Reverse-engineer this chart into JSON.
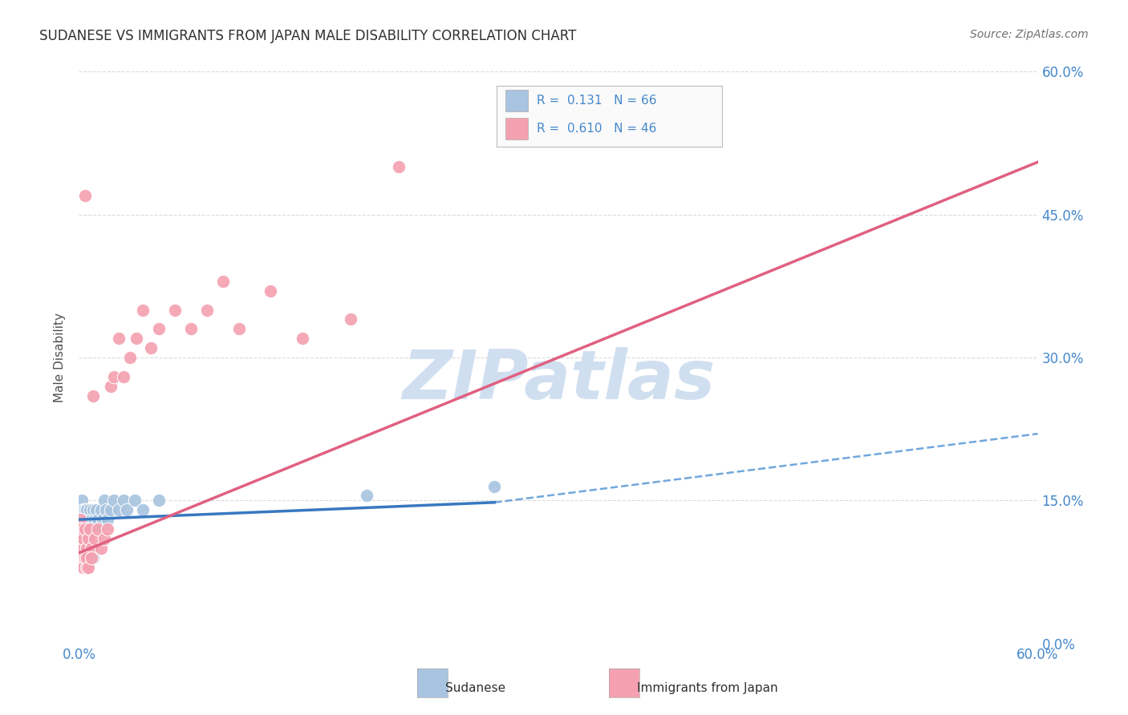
{
  "title": "SUDANESE VS IMMIGRANTS FROM JAPAN MALE DISABILITY CORRELATION CHART",
  "source": "Source: ZipAtlas.com",
  "ylabel": "Male Disability",
  "xlim": [
    0.0,
    0.6
  ],
  "ylim": [
    0.0,
    0.6
  ],
  "sudanese_R": 0.131,
  "sudanese_N": 66,
  "japan_R": 0.61,
  "japan_N": 46,
  "sudanese_color": "#a8c4e0",
  "japan_color": "#f4a0b0",
  "trendline_sudanese_solid_color": "#3878c0",
  "trendline_sudanese_dashed_color": "#5898d8",
  "trendline_japan_color": "#e06080",
  "watermark_color": "#d0dff0",
  "grid_color": "#d8d8d8",
  "title_color": "#303030",
  "tick_label_color": "#4488cc",
  "background_color": "#ffffff",
  "sud_x": [
    0.001,
    0.001,
    0.001,
    0.001,
    0.002,
    0.002,
    0.002,
    0.002,
    0.002,
    0.002,
    0.003,
    0.003,
    0.003,
    0.003,
    0.003,
    0.003,
    0.004,
    0.004,
    0.004,
    0.004,
    0.005,
    0.005,
    0.005,
    0.005,
    0.006,
    0.006,
    0.006,
    0.007,
    0.007,
    0.008,
    0.008,
    0.009,
    0.01,
    0.01,
    0.011,
    0.012,
    0.013,
    0.014,
    0.015,
    0.016,
    0.017,
    0.018,
    0.02,
    0.022,
    0.025,
    0.028,
    0.03,
    0.035,
    0.04,
    0.05,
    0.001,
    0.001,
    0.002,
    0.002,
    0.003,
    0.003,
    0.004,
    0.004,
    0.005,
    0.005,
    0.006,
    0.007,
    0.008,
    0.009,
    0.18,
    0.26
  ],
  "sud_y": [
    0.12,
    0.13,
    0.11,
    0.14,
    0.12,
    0.11,
    0.13,
    0.1,
    0.14,
    0.15,
    0.12,
    0.13,
    0.11,
    0.14,
    0.1,
    0.12,
    0.13,
    0.12,
    0.11,
    0.14,
    0.12,
    0.13,
    0.11,
    0.14,
    0.12,
    0.13,
    0.11,
    0.12,
    0.14,
    0.13,
    0.12,
    0.14,
    0.13,
    0.12,
    0.14,
    0.13,
    0.12,
    0.14,
    0.13,
    0.15,
    0.14,
    0.13,
    0.14,
    0.15,
    0.14,
    0.15,
    0.14,
    0.15,
    0.14,
    0.15,
    0.09,
    0.1,
    0.09,
    0.1,
    0.09,
    0.1,
    0.09,
    0.1,
    0.09,
    0.1,
    0.09,
    0.09,
    0.1,
    0.09,
    0.155,
    0.165
  ],
  "jap_x": [
    0.001,
    0.001,
    0.002,
    0.002,
    0.003,
    0.003,
    0.004,
    0.004,
    0.005,
    0.006,
    0.007,
    0.008,
    0.009,
    0.01,
    0.012,
    0.014,
    0.016,
    0.018,
    0.02,
    0.022,
    0.025,
    0.028,
    0.032,
    0.036,
    0.04,
    0.045,
    0.05,
    0.06,
    0.07,
    0.08,
    0.09,
    0.1,
    0.12,
    0.14,
    0.17,
    0.2,
    0.001,
    0.002,
    0.002,
    0.003,
    0.003,
    0.004,
    0.005,
    0.005,
    0.006,
    0.008
  ],
  "jap_y": [
    0.13,
    0.12,
    0.11,
    0.12,
    0.1,
    0.11,
    0.12,
    0.47,
    0.1,
    0.11,
    0.12,
    0.1,
    0.26,
    0.11,
    0.12,
    0.1,
    0.11,
    0.12,
    0.27,
    0.28,
    0.32,
    0.28,
    0.3,
    0.32,
    0.35,
    0.31,
    0.33,
    0.35,
    0.33,
    0.35,
    0.38,
    0.33,
    0.37,
    0.32,
    0.34,
    0.5,
    0.08,
    0.09,
    0.08,
    0.09,
    0.08,
    0.09,
    0.08,
    0.09,
    0.08,
    0.09
  ],
  "sud_trend_x0": 0.0,
  "sud_trend_x_solid_end": 0.26,
  "sud_trend_x1": 0.6,
  "sud_trend_y0": 0.13,
  "sud_trend_y_solid_end": 0.148,
  "sud_trend_y1": 0.22,
  "jap_trend_x0": 0.0,
  "jap_trend_x1": 0.6,
  "jap_trend_y0": 0.095,
  "jap_trend_y1": 0.505
}
